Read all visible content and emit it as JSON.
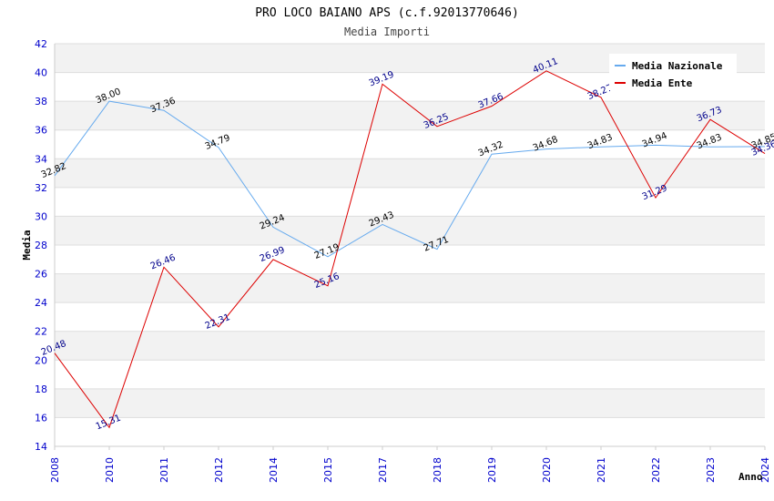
{
  "chart_data": {
    "type": "line",
    "title": "PRO LOCO BAIANO APS (c.f.92013770646)",
    "subtitle": "Media Importi",
    "xlabel": "Anno",
    "ylabel": "Media",
    "ylim": [
      14,
      42
    ],
    "ytick_step": 2,
    "categories": [
      "2008",
      "2010",
      "2011",
      "2012",
      "2014",
      "2015",
      "2017",
      "2018",
      "2019",
      "2020",
      "2021",
      "2022",
      "2023",
      "2024"
    ],
    "series": [
      {
        "name": "Media Nazionale",
        "color": "#66aaee",
        "values": [
          32.82,
          38.0,
          37.36,
          34.79,
          29.24,
          27.19,
          29.43,
          27.71,
          34.32,
          34.68,
          34.83,
          34.94,
          34.83,
          34.85
        ],
        "labels": [
          "32.82",
          "38.00",
          "37.36",
          "34.79",
          "29.24",
          "27.19",
          "29.43",
          "27.71",
          "34.32",
          "34.68",
          "34.83",
          "34.94",
          "34.83",
          "34.85"
        ]
      },
      {
        "name": "Media Ente",
        "color": "#dd0000",
        "values": [
          20.48,
          15.31,
          26.46,
          22.31,
          26.99,
          25.16,
          39.19,
          36.25,
          37.66,
          40.11,
          38.27,
          31.29,
          36.73,
          34.36
        ],
        "labels": [
          "20.48",
          "15.31",
          "26.46",
          "22.31",
          "26.99",
          "25.16",
          "39.19",
          "36.25",
          "37.66",
          "40.11",
          "38.27",
          "31.29",
          "36.73",
          "34.36"
        ]
      }
    ],
    "grid": true,
    "legend_position": "top-right"
  }
}
